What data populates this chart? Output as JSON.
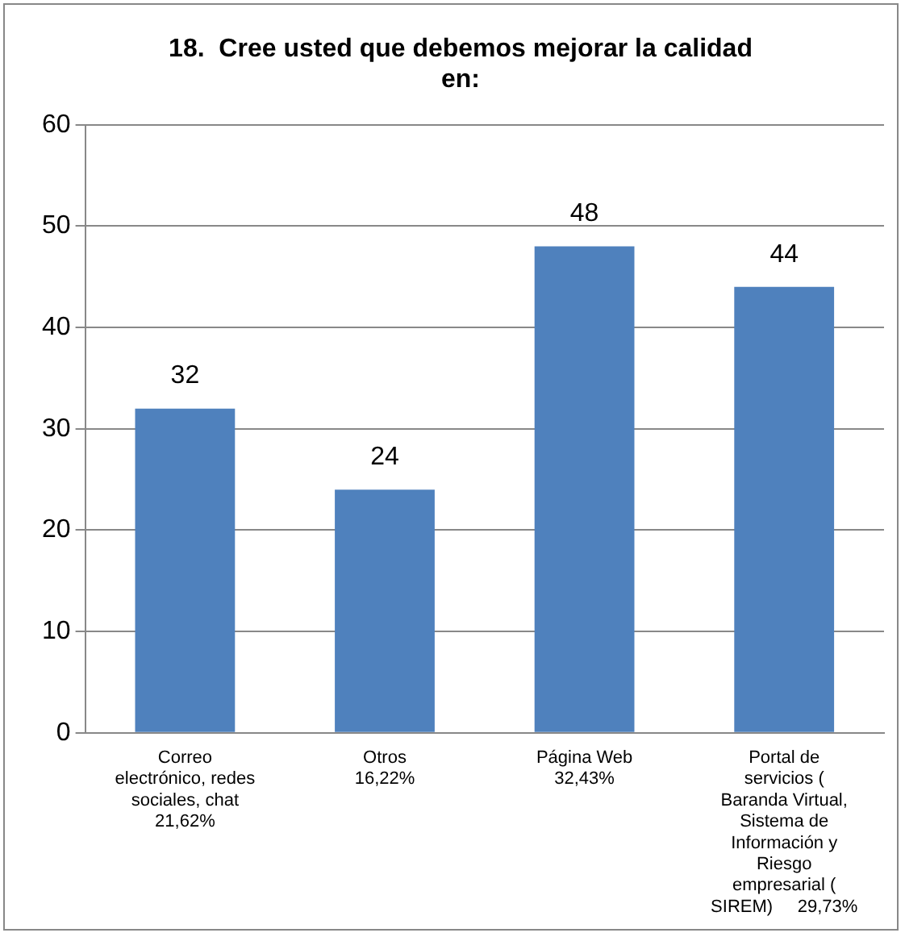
{
  "chart_data": {
    "type": "bar",
    "title": "18.  Cree usted que debemos mejorar la calidad\nen:",
    "categories": [
      "Correo\nelectrónico, redes\nsociales, chat\n21,62%",
      "Otros\n16,22%",
      "Página Web\n32,43%",
      "Portal de\nservicios (\nBaranda Virtual,\nSistema de\nInformación y\nRiesgo\nempresarial (\nSIREM)     29,73%"
    ],
    "values": [
      32,
      24,
      48,
      44
    ],
    "color": "#4f81bd",
    "ylim": [
      0,
      60
    ],
    "yticks": [
      0,
      10,
      20,
      30,
      40,
      50,
      60
    ],
    "grid": "y",
    "data_labels": true,
    "legend": false
  }
}
